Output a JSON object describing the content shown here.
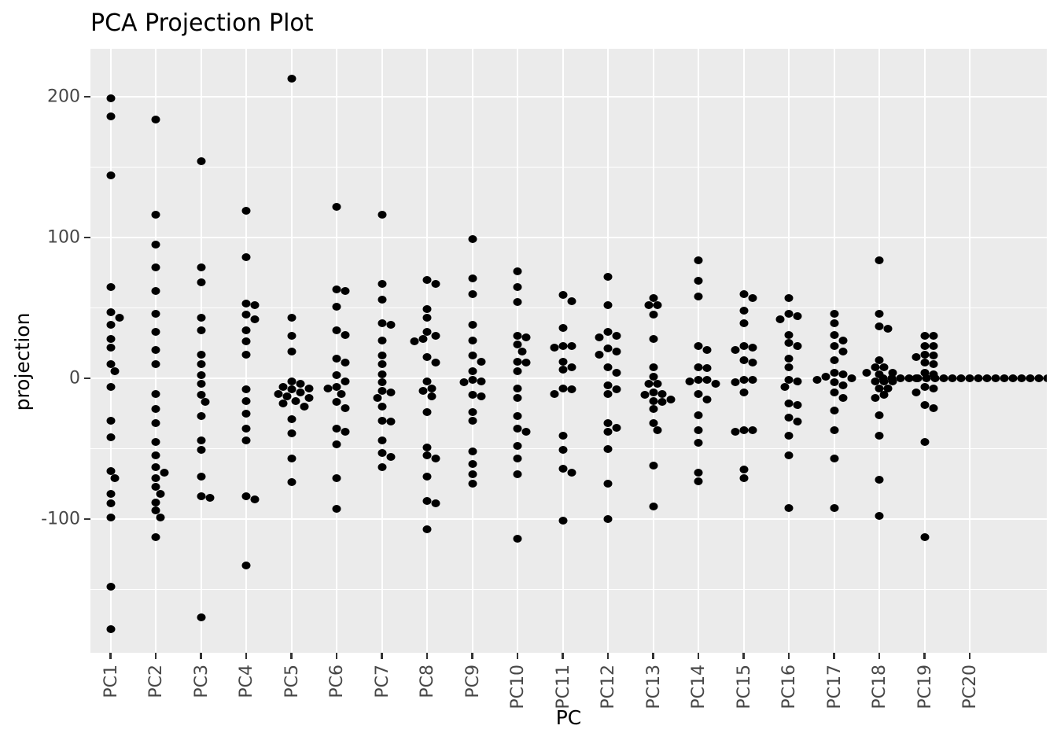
{
  "title": "PCA Projection Plot",
  "axes": {
    "x_label": "PC",
    "y_label": "projection",
    "y_tick_labels": [
      "200",
      "100",
      "0",
      "-100"
    ]
  },
  "chart_data": {
    "type": "scatter",
    "variant": "beeswarm-strip",
    "title": "PCA Projection Plot",
    "xlabel": "PC",
    "ylabel": "projection",
    "grid": "white major+minor horizontal lines and white vertical category lines on gray panel",
    "legend": "none",
    "panel_color": "#EBEBEB",
    "point_color": "#000000",
    "tick_label_color": "#474747",
    "ylim": [
      -198,
      233
    ],
    "yticks": [
      200,
      100,
      0,
      -100
    ],
    "yticks_minor": [
      150,
      50,
      -50,
      -150
    ],
    "categories": [
      "PC1",
      "PC2",
      "PC3",
      "PC4",
      "PC5",
      "PC6",
      "PC7",
      "PC8",
      "PC9",
      "PC10",
      "PC11",
      "PC12",
      "PC13",
      "PC14",
      "PC15",
      "PC16",
      "PC17",
      "PC18",
      "PC19",
      "PC20"
    ],
    "series": [
      {
        "name": "PC1",
        "values": [
          199,
          186,
          144,
          65,
          47,
          43,
          38,
          28,
          22,
          10,
          5,
          -6,
          -30,
          -42,
          -66,
          -71,
          -82,
          -89,
          -99,
          -148,
          -178
        ]
      },
      {
        "name": "PC2",
        "values": [
          184,
          116,
          95,
          79,
          62,
          46,
          33,
          20,
          10,
          -11,
          -22,
          -32,
          -45,
          -55,
          -63,
          -67,
          -71,
          -77,
          -82,
          -88,
          -94,
          -99,
          -113
        ]
      },
      {
        "name": "PC3",
        "values": [
          154,
          79,
          68,
          43,
          34,
          17,
          10,
          2,
          -4,
          -12,
          -17,
          -27,
          -44,
          -51,
          -70,
          -84,
          -85,
          -170
        ]
      },
      {
        "name": "PC4",
        "values": [
          119,
          86,
          53,
          52,
          45,
          42,
          34,
          26,
          17,
          -8,
          -16,
          -25,
          -36,
          -44,
          -84,
          -86,
          -133
        ]
      },
      {
        "name": "PC5",
        "values": [
          213,
          43,
          30,
          19,
          -2,
          -4,
          -6,
          -7,
          -8,
          -10,
          -11,
          -13,
          -14,
          -16,
          -18,
          -20,
          -29,
          -39,
          -57,
          -74
        ]
      },
      {
        "name": "PC6",
        "values": [
          122,
          63,
          62,
          51,
          34,
          31,
          14,
          11,
          2,
          -2,
          -6,
          -7,
          -11,
          -17,
          -21,
          -36,
          -38,
          -47,
          -71,
          -93
        ]
      },
      {
        "name": "PC7",
        "values": [
          116,
          67,
          56,
          39,
          38,
          27,
          16,
          10,
          3,
          -3,
          -9,
          -10,
          -14,
          -20,
          -30,
          -31,
          -44,
          -53,
          -56,
          -63
        ]
      },
      {
        "name": "PC8",
        "values": [
          70,
          67,
          49,
          43,
          33,
          30,
          28,
          26,
          15,
          11,
          -2,
          -7,
          -9,
          -13,
          -24,
          -49,
          -55,
          -57,
          -70,
          -87,
          -89,
          -107
        ]
      },
      {
        "name": "PC9",
        "values": [
          99,
          71,
          60,
          38,
          27,
          16,
          12,
          5,
          -1,
          -2,
          -3,
          -12,
          -13,
          -24,
          -30,
          -52,
          -61,
          -68,
          -75
        ]
      },
      {
        "name": "PC10",
        "values": [
          76,
          65,
          54,
          30,
          29,
          24,
          19,
          12,
          11,
          5,
          -7,
          -14,
          -27,
          -36,
          -38,
          -48,
          -57,
          -68,
          -114
        ]
      },
      {
        "name": "PC11",
        "values": [
          59,
          55,
          36,
          23,
          23,
          22,
          12,
          8,
          6,
          -7,
          -8,
          -11,
          -41,
          -51,
          -64,
          -67,
          -101
        ]
      },
      {
        "name": "PC12",
        "values": [
          72,
          52,
          33,
          30,
          29,
          21,
          19,
          17,
          8,
          4,
          -5,
          -8,
          -11,
          -32,
          -35,
          -38,
          -50,
          -75,
          -100
        ]
      },
      {
        "name": "PC13",
        "values": [
          57,
          52,
          52,
          45,
          28,
          8,
          1,
          -4,
          -4,
          -10,
          -11,
          -12,
          -15,
          -16,
          -17,
          -22,
          -32,
          -37,
          -62,
          -91
        ]
      },
      {
        "name": "PC14",
        "values": [
          84,
          69,
          58,
          23,
          20,
          8,
          7,
          -1,
          -1,
          -2,
          -4,
          -11,
          -15,
          -26,
          -37,
          -46,
          -67,
          -73
        ]
      },
      {
        "name": "PC15",
        "values": [
          60,
          57,
          48,
          39,
          23,
          22,
          20,
          13,
          11,
          -1,
          -1,
          -3,
          -10,
          -37,
          -37,
          -38,
          -65,
          -71
        ]
      },
      {
        "name": "PC16",
        "values": [
          57,
          46,
          44,
          42,
          31,
          25,
          23,
          14,
          8,
          -1,
          -2,
          -6,
          -18,
          -19,
          -28,
          -31,
          -41,
          -55,
          -92
        ]
      },
      {
        "name": "PC17",
        "values": [
          46,
          39,
          31,
          27,
          23,
          19,
          13,
          4,
          3,
          1,
          0,
          -1,
          -3,
          -5,
          -10,
          -14,
          -23,
          -37,
          -57,
          -92
        ]
      },
      {
        "name": "PC18",
        "values": [
          84,
          46,
          37,
          35,
          13,
          8,
          8,
          4,
          4,
          3,
          -2,
          -2,
          -2,
          -7,
          -7,
          -12,
          -14,
          -26,
          -41,
          -72,
          -98
        ]
      },
      {
        "name": "PC19",
        "values": [
          30,
          30,
          23,
          23,
          17,
          16,
          15,
          11,
          10,
          4,
          3,
          0,
          -6,
          -7,
          -10,
          -19,
          -21,
          -45,
          -113
        ]
      },
      {
        "name": "PC20",
        "values": [
          0,
          0,
          0,
          0,
          0,
          0,
          0,
          0,
          0,
          0,
          0,
          0,
          0,
          0,
          0,
          0,
          0,
          0,
          0,
          0,
          0,
          0
        ]
      }
    ]
  }
}
